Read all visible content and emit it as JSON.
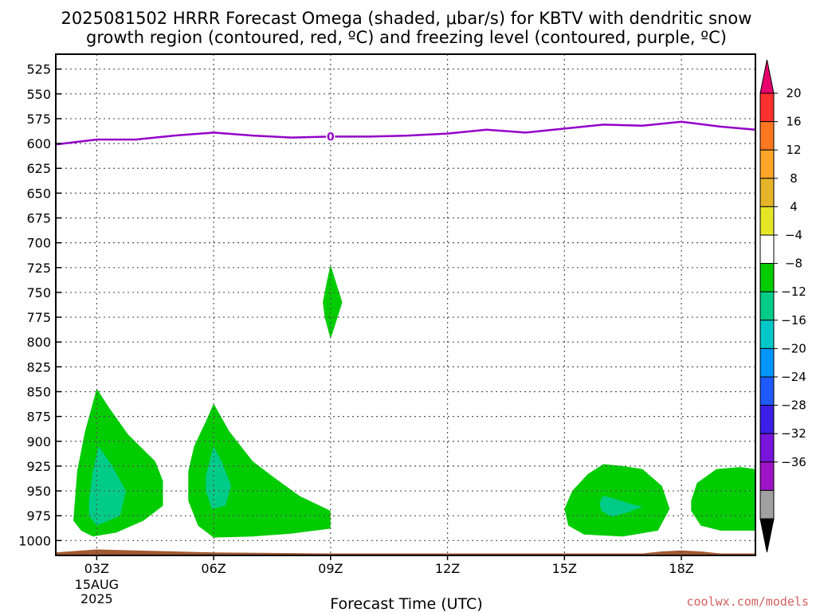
{
  "header": {
    "title_line1": "2025081502 HRRR Forecast Omega (shaded, μbar/s) for KBTV with dendritic snow",
    "title_line2": "growth region (contoured, red, ºC) and freezing level (contoured, purple, ºC)"
  },
  "credit": "coolwx.com/models",
  "colors": {
    "freezing_level": "#9400c8",
    "surface": "#a05a32",
    "grid": "#555555"
  },
  "chart_data": {
    "type": "heatmap",
    "xlabel": "Forecast Time (UTC)",
    "xlim": [
      1.95,
      19.9
    ],
    "ylim": [
      1015,
      510
    ],
    "x_ticks": [
      {
        "x": 3,
        "label": "03Z"
      },
      {
        "x": 6,
        "label": "06Z"
      },
      {
        "x": 9,
        "label": "09Z"
      },
      {
        "x": 12,
        "label": "12Z"
      },
      {
        "x": 15,
        "label": "15Z"
      },
      {
        "x": 18,
        "label": "18Z"
      }
    ],
    "x_sublabels": [
      "15AUG",
      "2025"
    ],
    "y_ticks": [
      525,
      550,
      575,
      600,
      625,
      650,
      675,
      700,
      725,
      750,
      775,
      800,
      825,
      850,
      875,
      900,
      925,
      950,
      975,
      1000
    ],
    "grid": true,
    "freezing_level": {
      "label": "0",
      "label_at": [
        9,
        593
      ],
      "points": [
        [
          1.95,
          601
        ],
        [
          3,
          596
        ],
        [
          4,
          596
        ],
        [
          5,
          592
        ],
        [
          6,
          589
        ],
        [
          7,
          592
        ],
        [
          8,
          594
        ],
        [
          9,
          593
        ],
        [
          10,
          593
        ],
        [
          11,
          592
        ],
        [
          12,
          590
        ],
        [
          13,
          586
        ],
        [
          14,
          589
        ],
        [
          15,
          585
        ],
        [
          16,
          581
        ],
        [
          17,
          582
        ],
        [
          18,
          578
        ],
        [
          19,
          583
        ],
        [
          19.9,
          586
        ]
      ]
    },
    "surface": [
      [
        1.95,
        1012
      ],
      [
        3,
        1009
      ],
      [
        4,
        1010
      ],
      [
        5,
        1011
      ],
      [
        6,
        1012
      ],
      [
        9,
        1013
      ],
      [
        12,
        1013
      ],
      [
        15,
        1013
      ],
      [
        17,
        1013
      ],
      [
        17.5,
        1011
      ],
      [
        18,
        1010
      ],
      [
        18.5,
        1011
      ],
      [
        19,
        1013
      ],
      [
        19.9,
        1013
      ]
    ],
    "omega_regions": [
      {
        "level": "-8",
        "color": "#00cc00",
        "points": [
          [
            2.4,
            980
          ],
          [
            2.5,
            930
          ],
          [
            2.7,
            890
          ],
          [
            3,
            847
          ],
          [
            3.3,
            865
          ],
          [
            3.8,
            893
          ],
          [
            4.5,
            920
          ],
          [
            4.7,
            940
          ],
          [
            4.7,
            965
          ],
          [
            4.2,
            980
          ],
          [
            3.5,
            992
          ],
          [
            2.9,
            996
          ],
          [
            2.6,
            990
          ]
        ]
      },
      {
        "level": "-12",
        "color": "#00cc88",
        "points": [
          [
            2.8,
            960
          ],
          [
            2.9,
            930
          ],
          [
            3.05,
            905
          ],
          [
            3.4,
            925
          ],
          [
            3.75,
            950
          ],
          [
            3.6,
            975
          ],
          [
            3.0,
            985
          ],
          [
            2.8,
            975
          ]
        ]
      },
      {
        "level": "-8",
        "color": "#00cc00",
        "points": [
          [
            5.35,
            930
          ],
          [
            5.5,
            905
          ],
          [
            5.8,
            880
          ],
          [
            6,
            862
          ],
          [
            6.4,
            890
          ],
          [
            7,
            920
          ],
          [
            7.5,
            935
          ],
          [
            8.2,
            955
          ],
          [
            9,
            970
          ],
          [
            9,
            988
          ],
          [
            8,
            993
          ],
          [
            7,
            996
          ],
          [
            6,
            997
          ],
          [
            5.6,
            985
          ],
          [
            5.35,
            960
          ]
        ]
      },
      {
        "level": "-12",
        "color": "#00cc88",
        "points": [
          [
            5.8,
            935
          ],
          [
            5.95,
            912
          ],
          [
            6.0,
            905
          ],
          [
            6.2,
            920
          ],
          [
            6.45,
            945
          ],
          [
            6.3,
            965
          ],
          [
            5.95,
            968
          ],
          [
            5.8,
            950
          ]
        ]
      },
      {
        "level": "-8",
        "color": "#00cc00",
        "points": [
          [
            9,
            722
          ],
          [
            9.1,
            735
          ],
          [
            9.3,
            760
          ],
          [
            9.1,
            785
          ],
          [
            9,
            797
          ],
          [
            8.85,
            775
          ],
          [
            8.8,
            760
          ],
          [
            8.9,
            740
          ]
        ]
      },
      {
        "level": "-8",
        "color": "#00cc00",
        "points": [
          [
            15,
            968
          ],
          [
            15.2,
            950
          ],
          [
            15.6,
            933
          ],
          [
            16,
            923
          ],
          [
            16.5,
            925
          ],
          [
            17,
            928
          ],
          [
            17.5,
            945
          ],
          [
            17.7,
            968
          ],
          [
            17.4,
            990
          ],
          [
            16.5,
            996
          ],
          [
            15.5,
            994
          ],
          [
            15.1,
            985
          ]
        ]
      },
      {
        "level": "-12",
        "color": "#00cc88",
        "points": [
          [
            15.9,
            962
          ],
          [
            16,
            955
          ],
          [
            16.3,
            958
          ],
          [
            16.7,
            963
          ],
          [
            17,
            966
          ],
          [
            16.6,
            972
          ],
          [
            16.2,
            976
          ],
          [
            15.95,
            970
          ]
        ]
      },
      {
        "level": "-8",
        "color": "#00cc00",
        "points": [
          [
            18.25,
            960
          ],
          [
            18.4,
            942
          ],
          [
            18.9,
            928
          ],
          [
            19.5,
            926
          ],
          [
            19.9,
            928
          ],
          [
            19.9,
            990
          ],
          [
            19,
            990
          ],
          [
            18.5,
            985
          ],
          [
            18.25,
            970
          ]
        ]
      }
    ],
    "colorbar": {
      "label": "μbar/s",
      "levels": [
        "20",
        "16",
        "12",
        "8",
        "4",
        "−4",
        "−8",
        "−12",
        "−16",
        "−20",
        "−24",
        "−28",
        "−32",
        "−36"
      ],
      "top_arrow_color": "#e8006e",
      "bottom_arrow_color": "#000000",
      "boxes": [
        "#ff3030",
        "#ff7820",
        "#ffa528",
        "#e6b428",
        "#e6e628",
        "#ffffff",
        "#00cc00",
        "#00cc88",
        "#00c8c8",
        "#0096ff",
        "#1e5aff",
        "#3c1ee6",
        "#7814dc",
        "#a014c8",
        "#a0a0a0"
      ]
    }
  }
}
